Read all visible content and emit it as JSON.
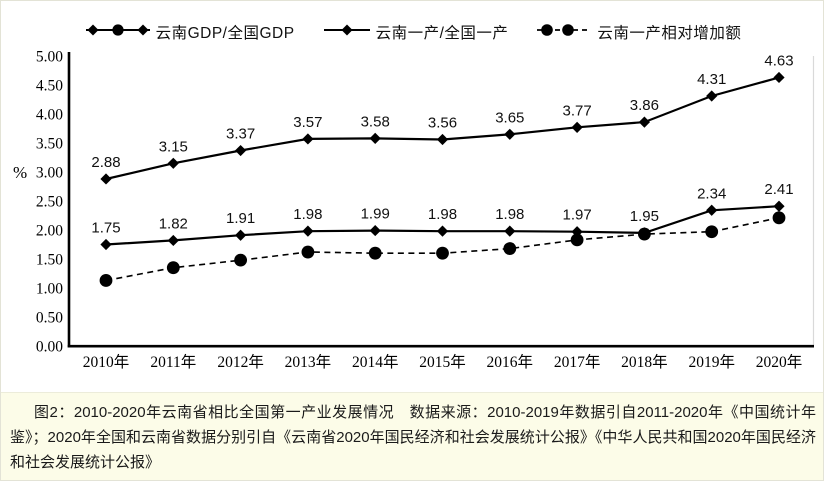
{
  "chart_data": {
    "type": "line",
    "title": "",
    "ylabel": "%",
    "ylim": [
      0,
      5
    ],
    "yticks": [
      "0.00",
      "0.50",
      "1.00",
      "1.50",
      "2.00",
      "2.50",
      "3.00",
      "3.50",
      "4.00",
      "4.50",
      "5.00"
    ],
    "categories": [
      "2010年",
      "2011年",
      "2012年",
      "2013年",
      "2014年",
      "2015年",
      "2016年",
      "2017年",
      "2018年",
      "2019年",
      "2020年"
    ],
    "grid": false,
    "legend_position": "top",
    "series": [
      {
        "name": "云南GDP/全国GDP",
        "values": [
          2.88,
          3.15,
          3.37,
          3.57,
          3.58,
          3.56,
          3.65,
          3.77,
          3.86,
          4.31,
          4.63
        ],
        "marker": "diamond",
        "line_style": "solid",
        "show_labels": true,
        "color": "#000000"
      },
      {
        "name": "云南一产/全国一产",
        "values": [
          1.75,
          1.82,
          1.91,
          1.98,
          1.99,
          1.98,
          1.98,
          1.97,
          1.95,
          2.34,
          2.41
        ],
        "marker": "diamond",
        "line_style": "solid",
        "show_labels": true,
        "color": "#000000"
      },
      {
        "name": "云南一产相对增加额",
        "values": [
          1.13,
          1.35,
          1.48,
          1.62,
          1.6,
          1.6,
          1.68,
          1.83,
          1.93,
          1.97,
          2.21
        ],
        "marker": "circle",
        "line_style": "dashed",
        "show_labels": false,
        "color": "#000000"
      }
    ]
  },
  "caption": {
    "text": "图2：2010-2020年云南省相比全国第一产业发展情况　数据来源：2010-2019年数据引自2011-2020年《中国统计年鉴》；2020年全国和云南省数据分别引自《云南省2020年国民经济和社会发展统计公报》《中华人民共和国2020年国民经济和社会发展统计公报》"
  },
  "colors": {
    "axis": "#000000",
    "plot_right_border": "#d9d9d9",
    "caption_bg": "#fcfce8"
  }
}
